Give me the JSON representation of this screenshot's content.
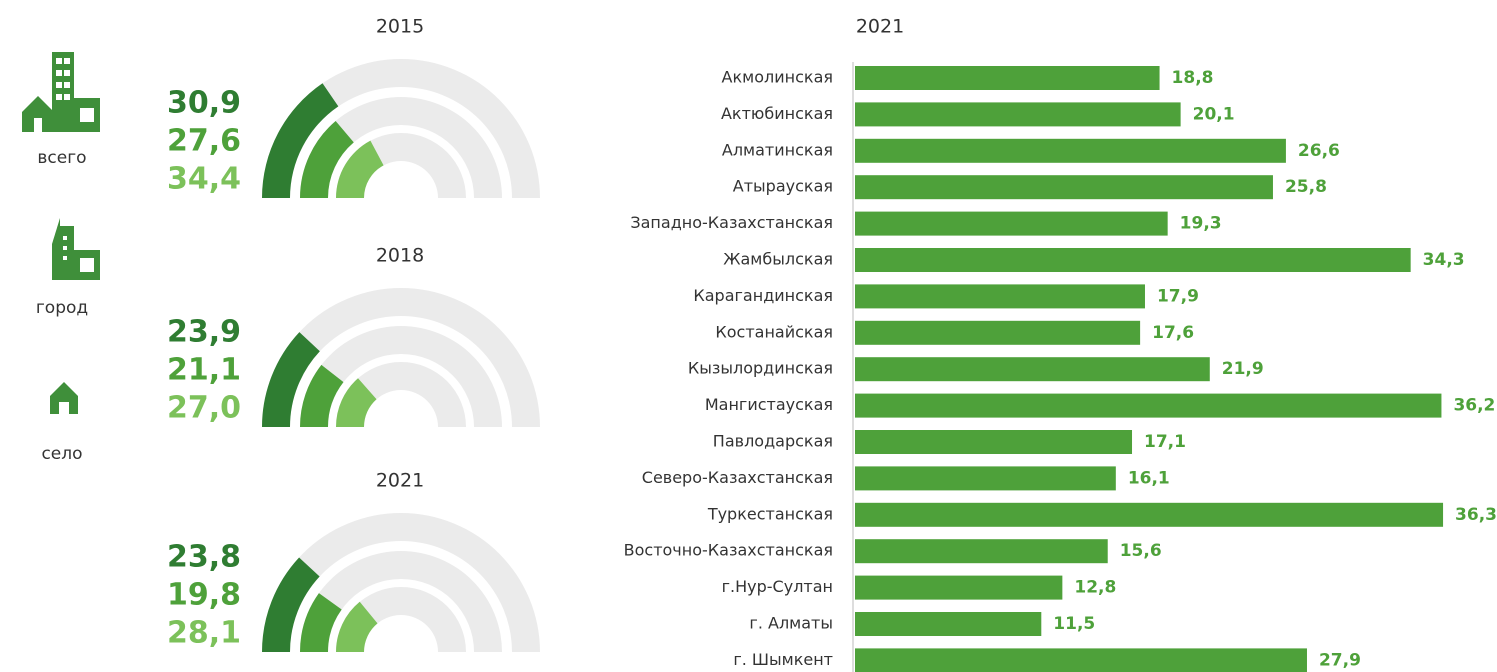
{
  "legend": [
    "всего",
    "город",
    "село"
  ],
  "chart_data": [
    {
      "type": "radial",
      "title": "2015",
      "values": [
        30.9,
        27.6,
        34.4
      ],
      "value_labels": [
        "30,9",
        "27,6",
        "34,4"
      ],
      "colors": [
        "#2f7d32",
        "#4ea13a",
        "#7cc15a"
      ],
      "ylim": [
        0,
        100
      ]
    },
    {
      "type": "radial",
      "title": "2018",
      "values": [
        23.9,
        21.1,
        27.0
      ],
      "value_labels": [
        "23,9",
        "21,1",
        "27,0"
      ],
      "colors": [
        "#2f7d32",
        "#4ea13a",
        "#7cc15a"
      ],
      "ylim": [
        0,
        100
      ]
    },
    {
      "type": "radial",
      "title": "2021",
      "values": [
        23.8,
        19.8,
        28.1
      ],
      "value_labels": [
        "23,8",
        "19,8",
        "28,1"
      ],
      "colors": [
        "#2f7d32",
        "#4ea13a",
        "#7cc15a"
      ],
      "ylim": [
        0,
        100
      ]
    },
    {
      "type": "hbar",
      "title": "2021",
      "categories": [
        "Акмолинская",
        "Актюбинская",
        "Алматинская",
        "Атырауская",
        "Западно-Казахстанская",
        "Жамбылская",
        "Карагандинская",
        "Костанайская",
        "Кызылординская",
        "Мангистауская",
        "Павлодарская",
        "Северо-Казахстанская",
        "Туркестанская",
        "Восточно-Казахстанская",
        "г.Нур-Султан",
        "г. Алматы",
        "г. Шымкент"
      ],
      "values": [
        18.8,
        20.1,
        26.6,
        25.8,
        19.3,
        34.3,
        17.9,
        17.6,
        21.9,
        36.2,
        17.1,
        16.1,
        36.3,
        15.6,
        12.8,
        11.5,
        27.9
      ],
      "value_labels": [
        "18,8",
        "20,1",
        "26,6",
        "25,8",
        "19,3",
        "34,3",
        "17,9",
        "17,6",
        "21,9",
        "36,2",
        "17,1",
        "16,1",
        "36,3",
        "15,6",
        "12,8",
        "11,5",
        "27,9"
      ],
      "color": "#4ea13a",
      "xlim": [
        0,
        40
      ]
    }
  ]
}
